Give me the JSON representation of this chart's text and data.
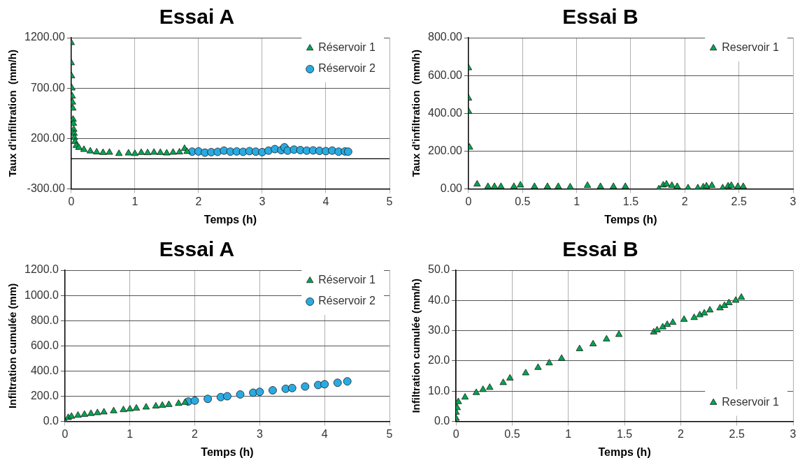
{
  "chart_data": [
    {
      "type": "scatter",
      "title": "Essai A",
      "xlabel": "Temps (h)",
      "ylabel": "Taux d'infiltration  (mm/h)",
      "xlim": [
        0,
        5
      ],
      "xticks": [
        0,
        1,
        2,
        3,
        4,
        5
      ],
      "ylim": [
        -300,
        1200
      ],
      "yticks": [
        {
          "value": -300,
          "label": "-300.00"
        },
        {
          "value": 200,
          "label": "200.00"
        },
        {
          "value": 700,
          "label": "700.00"
        },
        {
          "value": 1200,
          "label": "1200.00"
        }
      ],
      "grid": true,
      "legend": "top right",
      "ref_lines": [
        {
          "axis": "y",
          "value": 0,
          "color": "#000000"
        }
      ],
      "series": [
        {
          "name": "Réservoir 1",
          "color": "#00a650",
          "marker": "triangle",
          "x": [
            0,
            0,
            0.005,
            0.01,
            0.015,
            0.02,
            0.025,
            0.03,
            0.035,
            0.04,
            0.045,
            0.05,
            0.06,
            0.08,
            0.12,
            0.2,
            0.3,
            0.4,
            0.5,
            0.6,
            0.75,
            0.9,
            1.0,
            1.1,
            1.2,
            1.3,
            1.4,
            1.5,
            1.6,
            1.7,
            1.78,
            1.82
          ],
          "values": [
            1150,
            950,
            820,
            700,
            620,
            560,
            500,
            390,
            350,
            290,
            250,
            210,
            170,
            130,
            110,
            90,
            75,
            65,
            60,
            62,
            50,
            55,
            50,
            60,
            58,
            62,
            60,
            55,
            62,
            65,
            100,
            70
          ]
        },
        {
          "name": "Réservoir 2",
          "color": "#29abe2",
          "marker": "circle",
          "x": [
            1.9,
            2.0,
            2.1,
            2.2,
            2.3,
            2.4,
            2.5,
            2.6,
            2.7,
            2.8,
            2.9,
            3.0,
            3.1,
            3.2,
            3.3,
            3.35,
            3.4,
            3.5,
            3.6,
            3.7,
            3.8,
            3.9,
            4.0,
            4.1,
            4.2,
            4.3,
            4.35
          ],
          "values": [
            70,
            72,
            60,
            65,
            68,
            80,
            70,
            72,
            68,
            75,
            70,
            65,
            80,
            95,
            85,
            113,
            80,
            90,
            85,
            80,
            82,
            78,
            75,
            80,
            70,
            72,
            70
          ]
        }
      ]
    },
    {
      "type": "scatter",
      "title": "Essai B",
      "xlabel": "Temps (h)",
      "ylabel": "Taux d'infiltration  (mm/h)",
      "xlim": [
        0,
        3
      ],
      "xticks": [
        0,
        0.5,
        1,
        1.5,
        2,
        2.5,
        3
      ],
      "ylim": [
        0,
        800
      ],
      "yticks": [
        {
          "value": 0,
          "label": "0.00"
        },
        {
          "value": 200,
          "label": "200.00"
        },
        {
          "value": 400,
          "label": "400.00"
        },
        {
          "value": 600,
          "label": "600.00"
        },
        {
          "value": 800,
          "label": "800.00"
        }
      ],
      "grid": true,
      "legend": "top right",
      "series": [
        {
          "name": "Reservoir 1",
          "color": "#00a650",
          "marker": "triangle",
          "x": [
            0,
            0,
            0,
            0.01,
            0.08,
            0.18,
            0.24,
            0.3,
            0.42,
            0.48,
            0.61,
            0.73,
            0.83,
            0.94,
            1.1,
            1.22,
            1.34,
            1.45,
            1.76,
            1.8,
            1.83,
            1.88,
            1.93,
            2.03,
            2.12,
            2.17,
            2.2,
            2.25,
            2.35,
            2.4,
            2.43,
            2.49,
            2.54
          ],
          "values": [
            640,
            480,
            410,
            220,
            25,
            12,
            12,
            12,
            12,
            20,
            12,
            12,
            12,
            10,
            18,
            12,
            12,
            12,
            0,
            20,
            25,
            18,
            12,
            5,
            5,
            10,
            15,
            18,
            5,
            15,
            18,
            12,
            12
          ]
        }
      ]
    },
    {
      "type": "scatter",
      "title": "Essai A",
      "xlabel": "Temps (h)",
      "ylabel": "Infiltration cumulée (mm)",
      "xlim": [
        0,
        5
      ],
      "xticks": [
        0,
        1,
        2,
        3,
        4,
        5
      ],
      "ylim": [
        0,
        1200
      ],
      "yticks": [
        {
          "value": 0,
          "label": "0.0"
        },
        {
          "value": 200,
          "label": "200.0"
        },
        {
          "value": 400,
          "label": "400.0"
        },
        {
          "value": 600,
          "label": "600.0"
        },
        {
          "value": 800,
          "label": "800.0"
        },
        {
          "value": 1000,
          "label": "1000.0"
        },
        {
          "value": 1200,
          "label": "1200.0"
        }
      ],
      "grid": true,
      "legend": "top right",
      "series": [
        {
          "name": "Réservoir 1",
          "color": "#00a650",
          "marker": "triangle",
          "x": [
            0,
            0.05,
            0.1,
            0.2,
            0.3,
            0.4,
            0.5,
            0.6,
            0.75,
            0.9,
            1,
            1.1,
            1.25,
            1.4,
            1.5,
            1.6,
            1.75,
            1.85
          ],
          "values": [
            0,
            30,
            40,
            48,
            55,
            62,
            68,
            74,
            83,
            92,
            98,
            104,
            113,
            121,
            127,
            133,
            142,
            150
          ]
        },
        {
          "name": "Réservoir 2",
          "color": "#29abe2",
          "marker": "circle",
          "x": [
            1.9,
            2,
            2.2,
            2.4,
            2.5,
            2.7,
            2.9,
            3,
            3.2,
            3.4,
            3.5,
            3.7,
            3.9,
            4,
            4.2,
            4.35
          ],
          "values": [
            158,
            165,
            179,
            193,
            200,
            214,
            228,
            235,
            247,
            259,
            265,
            277,
            289,
            295,
            307,
            318
          ]
        }
      ]
    },
    {
      "type": "scatter",
      "title": "Essai B",
      "xlabel": "Temps (h)",
      "ylabel": "Infiltration cumulée (mm/h)",
      "xlim": [
        0,
        3
      ],
      "xticks": [
        0,
        0.5,
        1,
        1.5,
        2,
        2.5,
        3
      ],
      "ylim": [
        0,
        50
      ],
      "yticks": [
        {
          "value": 0,
          "label": "0.0"
        },
        {
          "value": 10,
          "label": "10.0"
        },
        {
          "value": 20,
          "label": "20.0"
        },
        {
          "value": 30,
          "label": "30.0"
        },
        {
          "value": 40,
          "label": "40.0"
        },
        {
          "value": 50,
          "label": "50.0"
        }
      ],
      "grid": true,
      "legend": "bottom right",
      "series": [
        {
          "name": "Reservoir 1",
          "color": "#00a650",
          "marker": "triangle",
          "x": [
            0,
            0,
            0.01,
            0.02,
            0.08,
            0.18,
            0.24,
            0.3,
            0.42,
            0.48,
            0.62,
            0.73,
            0.83,
            0.94,
            1.1,
            1.22,
            1.34,
            1.45,
            1.76,
            1.79,
            1.84,
            1.88,
            1.93,
            2.03,
            2.12,
            2.17,
            2.21,
            2.26,
            2.35,
            2.39,
            2.43,
            2.49,
            2.54
          ],
          "values": [
            1,
            3,
            4.5,
            6.5,
            8,
            9.5,
            10.5,
            11.2,
            12.8,
            14.3,
            16,
            17.8,
            19.3,
            20.8,
            24,
            25.6,
            27.2,
            28.7,
            29.5,
            30.2,
            31.2,
            32,
            32.7,
            33.7,
            34.3,
            35.2,
            35.8,
            36.8,
            37.5,
            38.3,
            39.2,
            40,
            41
          ]
        }
      ]
    }
  ]
}
